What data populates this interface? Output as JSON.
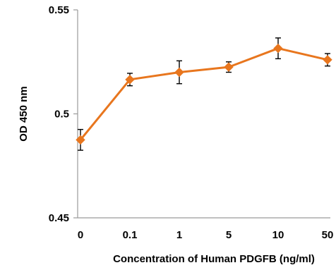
{
  "chart_data": {
    "type": "line",
    "title": "",
    "xlabel": "Concentration of Human PDGFB (ng/ml)",
    "ylabel": "OD  450 nm",
    "categories": [
      "0",
      "0.1",
      "1",
      "5",
      "10",
      "50"
    ],
    "y_ticks": [
      "0.45",
      "0.5",
      "0.55"
    ],
    "ylim": [
      0.45,
      0.55
    ],
    "grid": false,
    "legend": "none",
    "series": [
      {
        "values": [
          0.4875,
          0.5165,
          0.52,
          0.5225,
          0.5315,
          0.526
        ],
        "error": [
          0.005,
          0.003,
          0.0055,
          0.0025,
          0.005,
          0.003
        ],
        "color": "#E8761E",
        "marker": "diamond"
      }
    ]
  }
}
